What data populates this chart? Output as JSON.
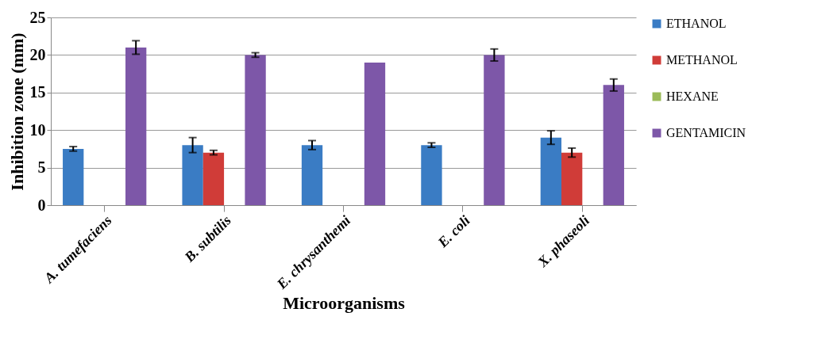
{
  "chart_data": {
    "type": "bar",
    "xlabel": "Microorganisms",
    "ylabel": "Inhibition zone (mm)",
    "categories": [
      "A. tumefaciens",
      "B. subtilis",
      "E. chrysanthemi",
      "E. coli",
      "X. phaseoli"
    ],
    "series": [
      {
        "name": "ETHANOL",
        "color": "#3a7cc4",
        "values": [
          7.5,
          8,
          8,
          8,
          9
        ],
        "errors": [
          0.3,
          1,
          0.6,
          0.3,
          0.9
        ]
      },
      {
        "name": "METHANOL",
        "color": "#d03c38",
        "values": [
          null,
          7,
          null,
          null,
          7
        ],
        "errors": [
          null,
          0.3,
          null,
          null,
          0.6
        ]
      },
      {
        "name": "HEXANE",
        "color": "#9bbb59",
        "values": [
          null,
          null,
          null,
          null,
          null
        ]
      },
      {
        "name": "GENTAMICIN",
        "color": "#7d57a8",
        "values": [
          21,
          20,
          19,
          20,
          16
        ],
        "errors": [
          0.9,
          0.3,
          null,
          0.8,
          0.8
        ]
      }
    ],
    "ylim": [
      0,
      25
    ],
    "yticks": [
      0,
      5,
      10,
      15,
      20,
      25
    ],
    "grid": "y",
    "legend": "right"
  }
}
